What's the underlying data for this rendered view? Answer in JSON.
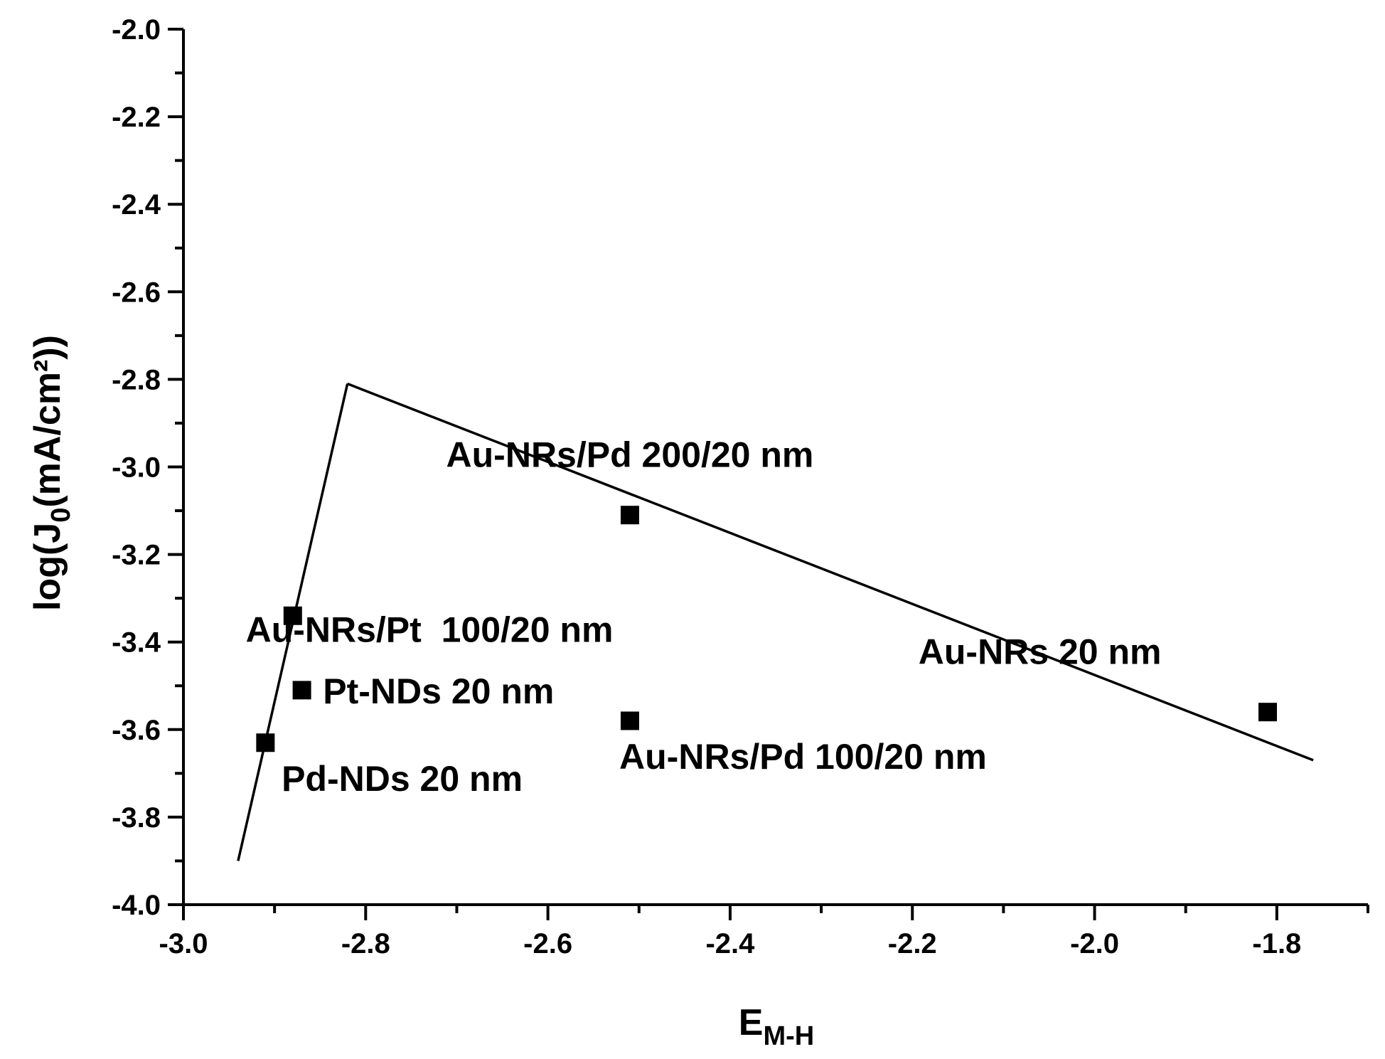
{
  "chart_data": {
    "type": "scatter",
    "title": "",
    "xlabel": {
      "main": "E",
      "sub": "M-H"
    },
    "ylabel": {
      "pre": "log(J",
      "sub": "0",
      "post": "(mA/cm²))"
    },
    "xlim": [
      -3.0,
      -1.7
    ],
    "ylim": [
      -4.0,
      -2.0
    ],
    "x_ticks": [
      -3.0,
      -2.8,
      -2.6,
      -2.4,
      -2.2,
      -2.0,
      -1.8
    ],
    "x_tick_labels": [
      "-3.0",
      "-2.8",
      "-2.6",
      "-2.4",
      "-2.2",
      "-2.0",
      "-1.8"
    ],
    "y_ticks": [
      -2.0,
      -2.2,
      -2.4,
      -2.6,
      -2.8,
      -3.0,
      -3.2,
      -3.4,
      -3.6,
      -3.8,
      -4.0
    ],
    "y_tick_labels": [
      "-2.0",
      "-2.2",
      "-2.4",
      "-2.6",
      "-2.8",
      "-3.0",
      "-3.2",
      "-3.4",
      "-3.6",
      "-3.8",
      "-4.0"
    ],
    "grid": false,
    "marker_color": "#000000",
    "line_color": "#000000",
    "points": [
      {
        "x": -2.91,
        "y": -3.63
      },
      {
        "x": -2.88,
        "y": -3.34
      },
      {
        "x": -2.87,
        "y": -3.51
      },
      {
        "x": -2.51,
        "y": -3.11
      },
      {
        "x": -2.51,
        "y": -3.58
      },
      {
        "x": -1.81,
        "y": -3.56
      }
    ],
    "trend_lines": [
      {
        "x": [
          -2.94,
          -2.82
        ],
        "y": [
          -3.9,
          -2.81
        ]
      },
      {
        "x": [
          -2.82,
          -1.76
        ],
        "y": [
          -2.81,
          -3.67
        ]
      }
    ],
    "annotations": [
      {
        "text": "Au-NRs/Pd 200/20 nm",
        "x": -2.51,
        "y": -3.0
      },
      {
        "text": "Au-NRs/Pt  100/20 nm",
        "x": -2.73,
        "y": -3.4
      },
      {
        "text": "Pt-NDs 20 nm",
        "x": -2.72,
        "y": -3.54
      },
      {
        "text": "Pd-NDs 20 nm",
        "x": -2.76,
        "y": -3.74
      },
      {
        "text": "Au-NRs/Pd 100/20 nm",
        "x": -2.32,
        "y": -3.69
      },
      {
        "text": "Au-NRs 20 nm",
        "x": -2.06,
        "y": -3.45
      }
    ]
  }
}
